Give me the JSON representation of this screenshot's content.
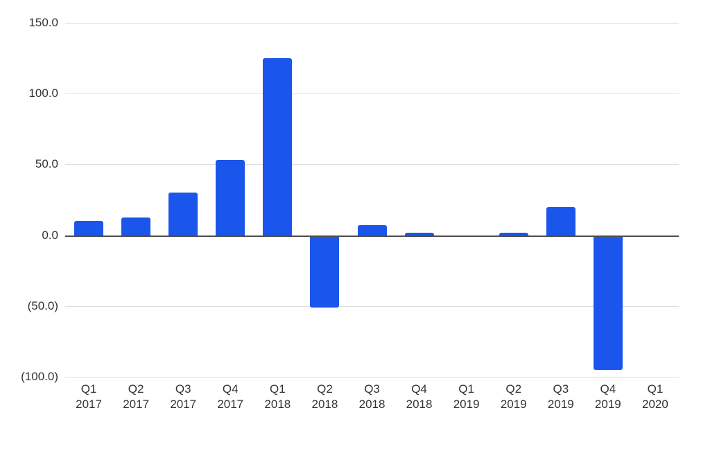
{
  "chart_data": {
    "type": "bar",
    "title": "",
    "xlabel": "",
    "ylabel": "",
    "categories": [
      "Q1 2017",
      "Q2 2017",
      "Q3 2017",
      "Q4 2017",
      "Q1 2018",
      "Q2 2018",
      "Q3 2018",
      "Q4 2018",
      "Q1 2019",
      "Q2 2019",
      "Q3 2019",
      "Q4 2019",
      "Q1 2020"
    ],
    "values": [
      10,
      12.5,
      30,
      53,
      125,
      -51,
      7,
      2,
      0,
      2,
      20,
      -95,
      0
    ],
    "ylim": [
      -100,
      150
    ],
    "yticks": [
      {
        "value": 150,
        "label": "150.0"
      },
      {
        "value": 100,
        "label": "100.0"
      },
      {
        "value": 50,
        "label": "50.0"
      },
      {
        "value": 0,
        "label": "0.0"
      },
      {
        "value": -50,
        "label": "(50.0)"
      },
      {
        "value": -100,
        "label": "(100.0)"
      }
    ],
    "grid": true,
    "legend": false,
    "colors": {
      "bar": "#1a56eb",
      "gridline": "#dedede",
      "zero_line": "#4d4d4d",
      "text": "#333333",
      "background": "#ffffff"
    }
  }
}
